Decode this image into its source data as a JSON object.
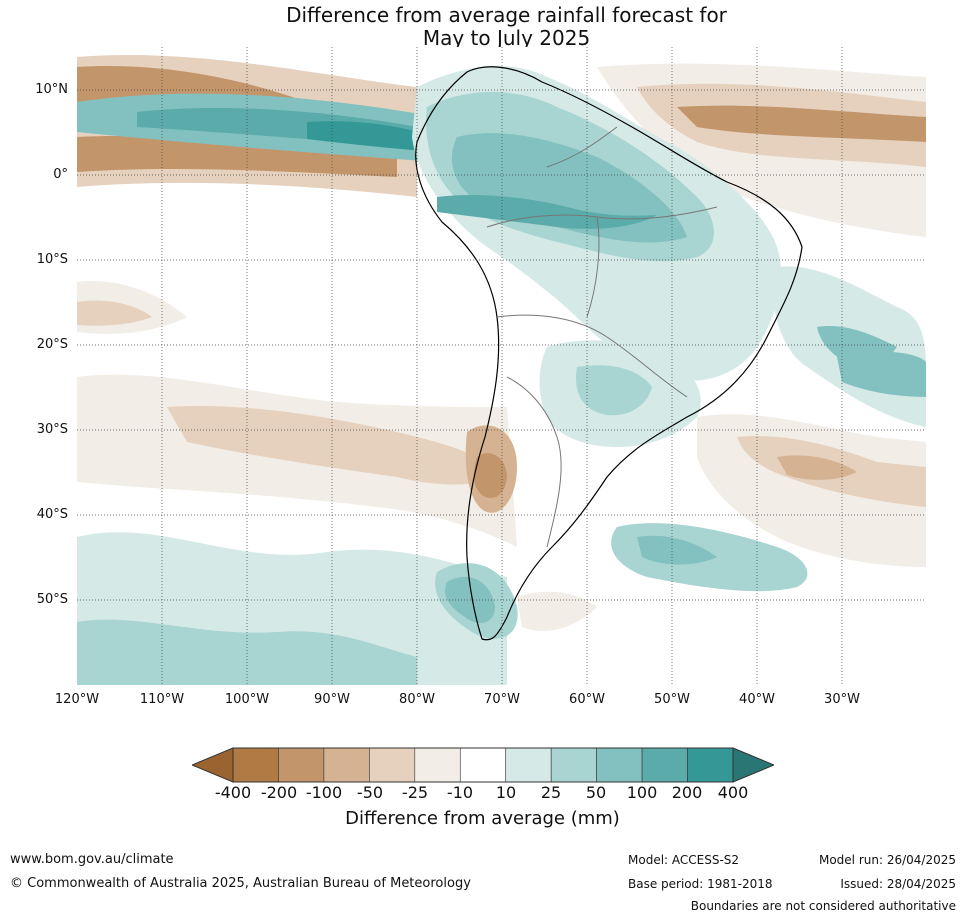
{
  "title": {
    "line1": "Difference from average rainfall forecast for",
    "line2": "May to July 2025"
  },
  "map": {
    "region": "South America",
    "latitude_labels": [
      "10°N",
      "0°",
      "10°S",
      "20°S",
      "30°S",
      "40°S",
      "50°S"
    ],
    "longitude_labels": [
      "120°W",
      "110°W",
      "100°W",
      "90°W",
      "80°W",
      "70°W",
      "60°W",
      "50°W",
      "40°W",
      "30°W"
    ],
    "gridlines": "dotted"
  },
  "legend": {
    "title": "Difference from average (mm)",
    "tick_labels": [
      "-400",
      "-200",
      "-100",
      "-50",
      "-25",
      "-10",
      "10",
      "25",
      "50",
      "100",
      "200",
      "400"
    ],
    "colors": [
      "#9a6330",
      "#b07a45",
      "#c3956b",
      "#d5b392",
      "#e5d1be",
      "#f2ede6",
      "#ffffff",
      "#d5e9e7",
      "#a8d4d2",
      "#82c1bf",
      "#5aabaa",
      "#339896",
      "#2a7674"
    ]
  },
  "footer": {
    "website": "www.bom.gov.au/climate",
    "copyright": "© Commonwealth of Australia 2025, Australian Bureau of Meteorology",
    "model": "Model: ACCESS-S2",
    "base_period": "Base period: 1981-2018",
    "model_run": "Model run: 26/04/2025",
    "issued": "Issued: 28/04/2025",
    "disclaimer": "Boundaries are not considered authoritative"
  }
}
